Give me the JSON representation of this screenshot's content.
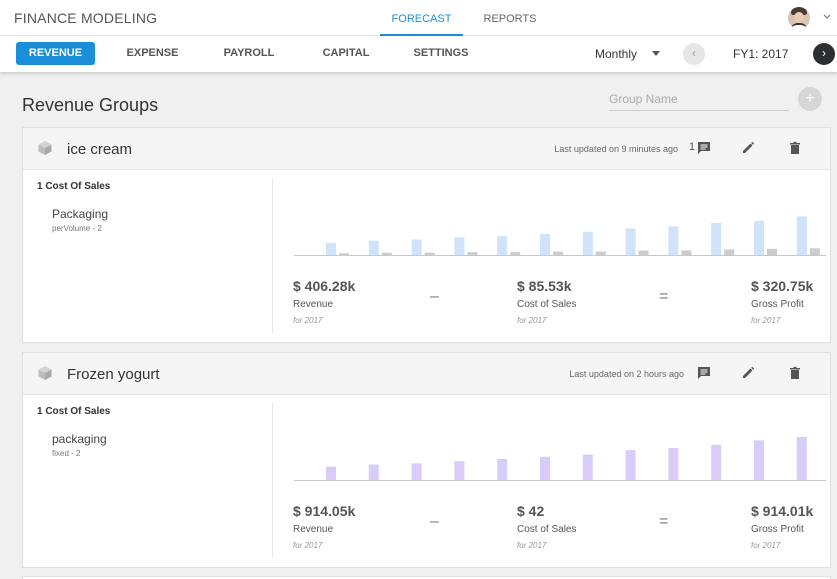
{
  "app_title": "FINANCE MODELING",
  "top_tabs": [
    {
      "label": "FORECAST",
      "active": true
    },
    {
      "label": "REPORTS",
      "active": false
    }
  ],
  "sub_tabs": [
    {
      "label": "REVENUE",
      "active": true
    },
    {
      "label": "EXPENSE",
      "active": false
    },
    {
      "label": "PAYROLL",
      "active": false
    },
    {
      "label": "CAPITAL",
      "active": false
    },
    {
      "label": "SETTINGS",
      "active": false
    }
  ],
  "period": "Monthly",
  "fiscal_year": "FY1: 2017",
  "section_title": "Revenue Groups",
  "group_name_placeholder": "Group Name",
  "add_icon": "+",
  "prev_icon": "‹",
  "next_icon": "›",
  "accent_color": "#1a8ed8",
  "groups": [
    {
      "name": "ice cream",
      "updated": "Last updated on 9 minutes ago",
      "comment_count": "1",
      "cost_title": "1 Cost Of Sales",
      "item_name": "Packaging",
      "item_sub": "perVolume - 2",
      "bar_color": "#cfe3fb",
      "cost_color": "#cccccc",
      "revenue_bars": [
        12,
        14,
        15,
        17,
        18,
        20,
        22,
        25,
        27,
        30,
        32,
        36
      ],
      "cost_bars": [
        2.5,
        3,
        3,
        3.5,
        3.5,
        4,
        4,
        5,
        5,
        6,
        6.5,
        7
      ],
      "revenue": {
        "value": "$ 406.28k",
        "label": "Revenue",
        "sub": "for 2017"
      },
      "cost": {
        "value": "$ 85.53k",
        "label": "Cost of Sales",
        "sub": "for 2017"
      },
      "profit": {
        "value": "$ 320.75k",
        "label": "Gross Profit",
        "sub": "for 2017"
      },
      "minus": "–",
      "equals": "="
    },
    {
      "name": "Frozen yogurt",
      "updated": "Last updated on 2 hours ago",
      "comment_count": "",
      "cost_title": "1 Cost Of Sales",
      "item_name": "packaging",
      "item_sub": "fixed - 2",
      "bar_color": "#d8ccf8",
      "cost_color": "#cccccc",
      "revenue_bars": [
        13,
        15,
        16,
        18,
        20,
        22,
        24,
        28,
        30,
        33,
        37,
        40
      ],
      "cost_bars": [],
      "revenue": {
        "value": "$ 914.05k",
        "label": "Revenue",
        "sub": "for 2017"
      },
      "cost": {
        "value": "$ 42",
        "label": "Cost of Sales",
        "sub": "for 2017"
      },
      "profit": {
        "value": "$ 914.01k",
        "label": "Gross Profit",
        "sub": "for 2017"
      },
      "minus": "–",
      "equals": "="
    }
  ]
}
